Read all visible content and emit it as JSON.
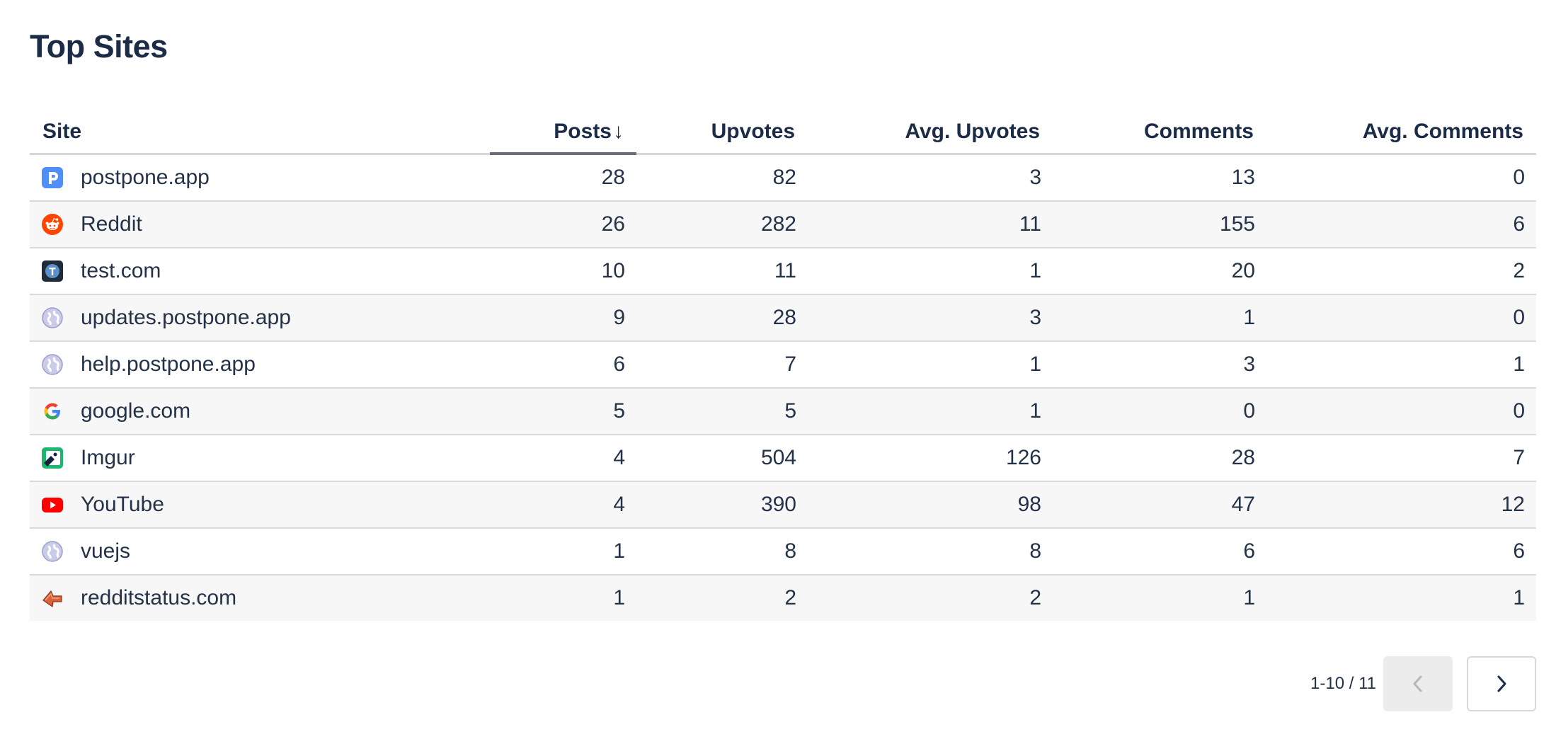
{
  "page": {
    "title": "Top Sites"
  },
  "table": {
    "headers": {
      "site": "Site",
      "posts": "Posts",
      "posts_sort_icon": "↓",
      "upvotes": "Upvotes",
      "avg_upvotes": "Avg. Upvotes",
      "comments": "Comments",
      "avg_comments": "Avg. Comments"
    },
    "sorted_by": "Posts",
    "sort_direction": "descending",
    "rows": [
      {
        "site": "postpone.app",
        "icon": "postpone-icon",
        "posts": "28",
        "upvotes": "82",
        "avg_upvotes": "3",
        "comments": "13",
        "avg_comments": "0"
      },
      {
        "site": "Reddit",
        "icon": "reddit-icon",
        "posts": "26",
        "upvotes": "282",
        "avg_upvotes": "11",
        "comments": "155",
        "avg_comments": "6"
      },
      {
        "site": "test.com",
        "icon": "test-icon",
        "posts": "10",
        "upvotes": "11",
        "avg_upvotes": "1",
        "comments": "20",
        "avg_comments": "2"
      },
      {
        "site": "updates.postpone.app",
        "icon": "globe-icon",
        "posts": "9",
        "upvotes": "28",
        "avg_upvotes": "3",
        "comments": "1",
        "avg_comments": "0"
      },
      {
        "site": "help.postpone.app",
        "icon": "globe-icon",
        "posts": "6",
        "upvotes": "7",
        "avg_upvotes": "1",
        "comments": "3",
        "avg_comments": "1"
      },
      {
        "site": "google.com",
        "icon": "google-icon",
        "posts": "5",
        "upvotes": "5",
        "avg_upvotes": "1",
        "comments": "0",
        "avg_comments": "0"
      },
      {
        "site": "Imgur",
        "icon": "imgur-icon",
        "posts": "4",
        "upvotes": "504",
        "avg_upvotes": "126",
        "comments": "28",
        "avg_comments": "7"
      },
      {
        "site": "YouTube",
        "icon": "youtube-icon",
        "posts": "4",
        "upvotes": "390",
        "avg_upvotes": "98",
        "comments": "47",
        "avg_comments": "12"
      },
      {
        "site": "vuejs",
        "icon": "globe-icon",
        "posts": "1",
        "upvotes": "8",
        "avg_upvotes": "8",
        "comments": "6",
        "avg_comments": "6"
      },
      {
        "site": "redditstatus.com",
        "icon": "redditstatus-icon",
        "posts": "1",
        "upvotes": "2",
        "avg_upvotes": "2",
        "comments": "1",
        "avg_comments": "1"
      }
    ]
  },
  "pagination": {
    "range_text": "1-10 / 11",
    "prev_enabled": false,
    "next_enabled": true
  },
  "colors": {
    "title": "#1c2c47",
    "text": "#243247",
    "row_alt": "#f7f7f8",
    "divider": "#d8dade",
    "sort_underline": "#6a6e76"
  }
}
